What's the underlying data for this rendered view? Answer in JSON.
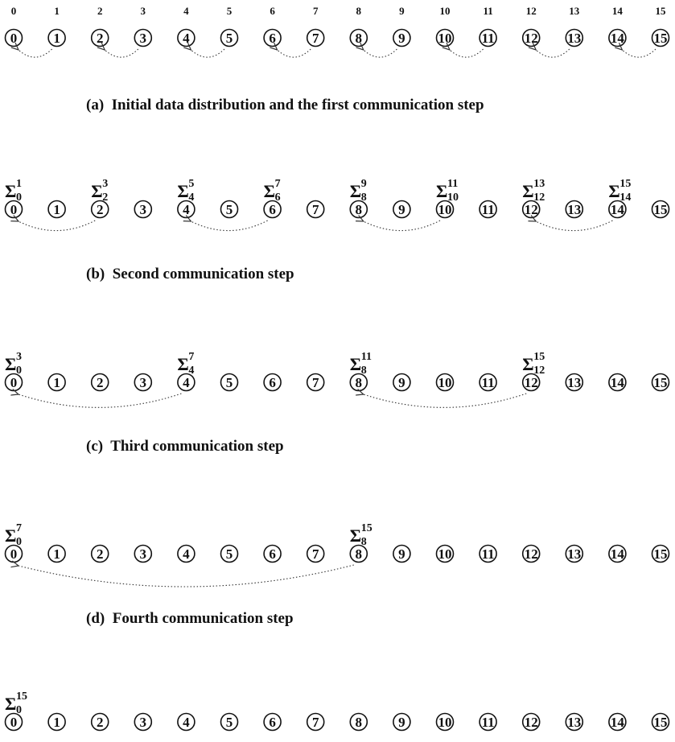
{
  "header_labels": [
    "0",
    "1",
    "2",
    "3",
    "4",
    "5",
    "6",
    "7",
    "8",
    "9",
    "10",
    "11",
    "12",
    "13",
    "14",
    "15"
  ],
  "node_labels": [
    "0",
    "1",
    "2",
    "3",
    "4",
    "5",
    "6",
    "7",
    "8",
    "9",
    "10",
    "11",
    "12",
    "13",
    "14",
    "15"
  ],
  "stages": [
    {
      "caption": "(a)  Initial data distribution and the first communication step",
      "sums": [],
      "arrows": [
        [
          1,
          0
        ],
        [
          3,
          2
        ],
        [
          5,
          4
        ],
        [
          7,
          6
        ],
        [
          9,
          8
        ],
        [
          11,
          10
        ],
        [
          13,
          12
        ],
        [
          15,
          14
        ]
      ]
    },
    {
      "caption": "(b)  Second communication step",
      "sums": [
        {
          "node": 0,
          "symbol": "Σ",
          "sub": "0",
          "sup": "1"
        },
        {
          "node": 2,
          "symbol": "Σ",
          "sub": "2",
          "sup": "3"
        },
        {
          "node": 4,
          "symbol": "Σ",
          "sub": "4",
          "sup": "5"
        },
        {
          "node": 6,
          "symbol": "Σ",
          "sub": "6",
          "sup": "7"
        },
        {
          "node": 8,
          "symbol": "Σ",
          "sub": "8",
          "sup": "9"
        },
        {
          "node": 10,
          "symbol": "Σ",
          "sub": "10",
          "sup": "11"
        },
        {
          "node": 12,
          "symbol": "Σ",
          "sub": "12",
          "sup": "13"
        },
        {
          "node": 14,
          "symbol": "Σ",
          "sub": "14",
          "sup": "15"
        }
      ],
      "arrows": [
        [
          2,
          0
        ],
        [
          6,
          4
        ],
        [
          10,
          8
        ],
        [
          14,
          12
        ]
      ]
    },
    {
      "caption": "(c)  Third communication step",
      "sums": [
        {
          "node": 0,
          "symbol": "Σ",
          "sub": "0",
          "sup": "3"
        },
        {
          "node": 4,
          "symbol": "Σ",
          "sub": "4",
          "sup": "7"
        },
        {
          "node": 8,
          "symbol": "Σ",
          "sub": "8",
          "sup": "11"
        },
        {
          "node": 12,
          "symbol": "Σ",
          "sub": "12",
          "sup": "15"
        }
      ],
      "arrows": [
        [
          4,
          0
        ],
        [
          12,
          8
        ]
      ]
    },
    {
      "caption": "(d)  Fourth communication step",
      "sums": [
        {
          "node": 0,
          "symbol": "Σ",
          "sub": "0",
          "sup": "7"
        },
        {
          "node": 8,
          "symbol": "Σ",
          "sub": "8",
          "sup": "15"
        }
      ],
      "arrows": [
        [
          8,
          0
        ]
      ]
    },
    {
      "caption": "",
      "sums": [
        {
          "node": 0,
          "symbol": "Σ",
          "sub": "0",
          "sup": "15"
        }
      ],
      "arrows": []
    }
  ]
}
